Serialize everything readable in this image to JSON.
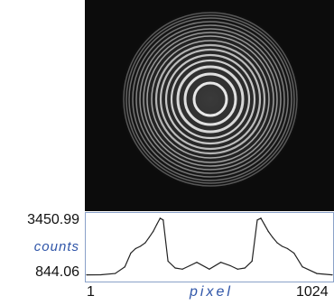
{
  "colors": {
    "image_background": "#0c0c0c",
    "ring_color": "#e8e8e8",
    "profile_border": "#8aa1c8",
    "profile_line": "#222222",
    "axis_name_color": "#2f55a8"
  },
  "image": {
    "description_icon": "interference-rings-image"
  },
  "profile": {
    "y_max_label": "3450.99",
    "y_axis_name": "counts",
    "y_min_label": "844.06",
    "x_min_label": "1",
    "x_axis_name": "pixel",
    "x_max_label": "1024"
  },
  "chart_data": {
    "type": "line",
    "xlabel": "pixel",
    "ylabel": "counts",
    "xlim": [
      1,
      1024
    ],
    "ylim": [
      844.06,
      3450.99
    ],
    "series": [
      {
        "x": [
          1,
          60,
          120,
          160,
          185,
          205,
          225,
          245,
          262,
          278,
          293,
          307,
          320,
          340,
          370,
          400,
          430,
          460,
          512,
          560,
          600,
          630,
          660,
          690,
          712,
          727,
          742,
          758,
          775,
          795,
          815,
          838,
          865,
          900,
          960,
          1024
        ],
        "y": [
          900,
          905,
          960,
          1250,
          1850,
          2050,
          2150,
          2300,
          2550,
          2800,
          3100,
          3380,
          3300,
          1500,
          1200,
          1150,
          1300,
          1450,
          1150,
          1450,
          1300,
          1150,
          1200,
          1500,
          3300,
          3380,
          3100,
          2800,
          2550,
          2300,
          2150,
          2050,
          1850,
          1250,
          960,
          900
        ]
      }
    ]
  }
}
